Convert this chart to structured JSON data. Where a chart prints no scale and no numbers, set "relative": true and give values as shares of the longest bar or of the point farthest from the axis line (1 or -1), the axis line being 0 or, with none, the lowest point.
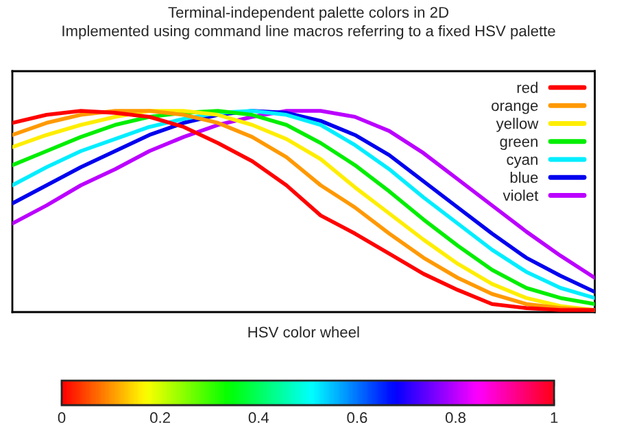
{
  "chart_data": {
    "type": "line",
    "title": "Terminal-independent palette colors in 2D\nImplemented using command line macros referring to a fixed HSV palette",
    "xlabel": "HSV color wheel",
    "relative": true,
    "legend": "top right",
    "grid": false,
    "marker": "none",
    "line_style": "solid",
    "categories": [
      null,
      null,
      null,
      null,
      null,
      null,
      null,
      null,
      null,
      null,
      null,
      null,
      null,
      null,
      null,
      null,
      null,
      null
    ],
    "series": [
      {
        "name": "red",
        "color": "#ff0000",
        "values": [
          0.94,
          0.98,
          1,
          0.99,
          0.97,
          0.92,
          0.84,
          0.75,
          0.63,
          0.48,
          0.39,
          0.29,
          0.19,
          0.11,
          0.04,
          0.02,
          0.01,
          0.01
        ]
      },
      {
        "name": "orange",
        "color": "#ff9900",
        "values": [
          0.88,
          0.94,
          0.98,
          1,
          1,
          0.98,
          0.94,
          0.87,
          0.77,
          0.63,
          0.52,
          0.39,
          0.27,
          0.17,
          0.09,
          0.04,
          0.02,
          0.01
        ]
      },
      {
        "name": "yellow",
        "color": "#ffee00",
        "values": [
          0.82,
          0.88,
          0.93,
          0.97,
          1,
          1,
          0.98,
          0.93,
          0.86,
          0.76,
          0.62,
          0.49,
          0.36,
          0.24,
          0.14,
          0.07,
          0.03,
          0.01
        ]
      },
      {
        "name": "green",
        "color": "#00ee00",
        "values": [
          0.73,
          0.8,
          0.87,
          0.93,
          0.97,
          0.99,
          1,
          0.98,
          0.93,
          0.84,
          0.73,
          0.6,
          0.46,
          0.33,
          0.21,
          0.12,
          0.07,
          0.04
        ]
      },
      {
        "name": "cyan",
        "color": "#00eeff",
        "values": [
          0.63,
          0.72,
          0.8,
          0.86,
          0.92,
          0.96,
          0.99,
          1,
          0.98,
          0.93,
          0.83,
          0.71,
          0.57,
          0.44,
          0.31,
          0.2,
          0.12,
          0.07
        ]
      },
      {
        "name": "blue",
        "color": "#0000ee",
        "values": [
          0.54,
          0.63,
          0.72,
          0.8,
          0.88,
          0.94,
          0.98,
          1,
          0.99,
          0.95,
          0.88,
          0.78,
          0.65,
          0.52,
          0.39,
          0.27,
          0.18,
          0.1
        ]
      },
      {
        "name": "violet",
        "color": "#bb00ff",
        "values": [
          0.44,
          0.53,
          0.63,
          0.71,
          0.8,
          0.87,
          0.93,
          0.97,
          1,
          1,
          0.97,
          0.9,
          0.79,
          0.66,
          0.53,
          0.4,
          0.28,
          0.17
        ]
      }
    ],
    "clim": [
      0,
      1
    ],
    "cticks": [
      0,
      0.2,
      0.4,
      0.6,
      0.8,
      1
    ]
  }
}
